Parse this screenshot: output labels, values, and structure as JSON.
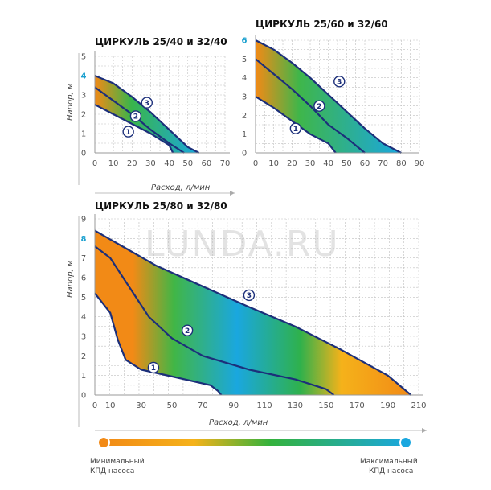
{
  "chart_data": [
    {
      "type": "line",
      "title": "ЦИРКУЛЬ 25/40 и 32/40",
      "xlabel": "Расход, л/мин",
      "ylabel": "Напор, м",
      "xlim": [
        0,
        70
      ],
      "ylim": [
        0,
        5
      ],
      "xticks": [
        "0",
        "10",
        "20",
        "30",
        "40",
        "50",
        "60",
        "70"
      ],
      "yticks": [
        "0",
        "1",
        "2",
        "3",
        "4",
        "5"
      ],
      "highlight_ytick": "4",
      "series": [
        {
          "label": "1",
          "points": [
            [
              0,
              2.5
            ],
            [
              10,
              2.0
            ],
            [
              20,
              1.5
            ],
            [
              30,
              1.0
            ],
            [
              40,
              0.4
            ],
            [
              42,
              0.0
            ]
          ]
        },
        {
          "label": "2",
          "points": [
            [
              0,
              3.4
            ],
            [
              10,
              2.7
            ],
            [
              20,
              2.0
            ],
            [
              30,
              1.2
            ],
            [
              40,
              0.5
            ],
            [
              48,
              0.0
            ]
          ]
        },
        {
          "label": "3",
          "points": [
            [
              0,
              4.0
            ],
            [
              10,
              3.6
            ],
            [
              20,
              2.9
            ],
            [
              30,
              2.1
            ],
            [
              40,
              1.2
            ],
            [
              50,
              0.3
            ],
            [
              56,
              0.0
            ]
          ]
        }
      ],
      "curve_label_at": [
        [
          18,
          1.1
        ],
        [
          22,
          1.9
        ],
        [
          28,
          2.6
        ]
      ],
      "area_max": [
        [
          0,
          4.0
        ],
        [
          10,
          3.6
        ],
        [
          20,
          2.9
        ],
        [
          30,
          2.1
        ],
        [
          40,
          1.2
        ],
        [
          50,
          0.3
        ],
        [
          56,
          0.0
        ]
      ],
      "area_min": [
        [
          0,
          2.5
        ],
        [
          10,
          2.0
        ],
        [
          20,
          1.5
        ],
        [
          30,
          1.0
        ],
        [
          40,
          0.4
        ],
        [
          42,
          0.0
        ]
      ]
    },
    {
      "type": "line",
      "title": "ЦИРКУЛЬ 25/60 и 32/60",
      "xlabel": "",
      "ylabel": "",
      "xlim": [
        0,
        90
      ],
      "ylim": [
        0,
        6
      ],
      "xticks": [
        "0",
        "10",
        "20",
        "30",
        "40",
        "50",
        "60",
        "70",
        "80",
        "90"
      ],
      "yticks": [
        "0",
        "1",
        "2",
        "3",
        "4",
        "5",
        "6"
      ],
      "highlight_ytick": "6",
      "series": [
        {
          "label": "1",
          "points": [
            [
              0,
              3.0
            ],
            [
              10,
              2.4
            ],
            [
              20,
              1.7
            ],
            [
              30,
              1.0
            ],
            [
              40,
              0.5
            ],
            [
              44,
              0.0
            ]
          ]
        },
        {
          "label": "2",
          "points": [
            [
              0,
              5.0
            ],
            [
              10,
              4.2
            ],
            [
              20,
              3.4
            ],
            [
              30,
              2.5
            ],
            [
              40,
              1.5
            ],
            [
              50,
              0.8
            ],
            [
              60,
              0.0
            ]
          ]
        },
        {
          "label": "3",
          "points": [
            [
              0,
              6.0
            ],
            [
              10,
              5.5
            ],
            [
              20,
              4.8
            ],
            [
              30,
              4.0
            ],
            [
              40,
              3.1
            ],
            [
              50,
              2.2
            ],
            [
              60,
              1.3
            ],
            [
              70,
              0.5
            ],
            [
              80,
              0.0
            ]
          ]
        }
      ],
      "curve_label_at": [
        [
          22,
          1.3
        ],
        [
          35,
          2.5
        ],
        [
          46,
          3.8
        ]
      ],
      "area_max": [
        [
          0,
          6.0
        ],
        [
          10,
          5.5
        ],
        [
          20,
          4.8
        ],
        [
          30,
          4.0
        ],
        [
          40,
          3.1
        ],
        [
          50,
          2.2
        ],
        [
          60,
          1.3
        ],
        [
          70,
          0.5
        ],
        [
          80,
          0.0
        ]
      ],
      "area_min": [
        [
          0,
          3.0
        ],
        [
          10,
          2.4
        ],
        [
          20,
          1.7
        ],
        [
          30,
          1.0
        ],
        [
          40,
          0.5
        ],
        [
          44,
          0.0
        ]
      ]
    },
    {
      "type": "line",
      "title": "ЦИРКУЛЬ 25/80 и 32/80",
      "xlabel": "Расход, л/мин",
      "ylabel": "Напор, м",
      "xlim": [
        0,
        210
      ],
      "ylim": [
        0,
        9
      ],
      "xticks": [
        "0",
        "10",
        "30",
        "50",
        "70",
        "90",
        "110",
        "130",
        "150",
        "170",
        "190",
        "210"
      ],
      "xtick_values": [
        0,
        10,
        30,
        50,
        70,
        90,
        110,
        130,
        150,
        170,
        190,
        210
      ],
      "yticks": [
        "0",
        "1",
        "2",
        "3",
        "4",
        "5",
        "6",
        "7",
        "8",
        "9"
      ],
      "highlight_ytick": "8",
      "series": [
        {
          "label": "1",
          "points": [
            [
              0,
              5.2
            ],
            [
              10,
              4.2
            ],
            [
              15,
              2.8
            ],
            [
              20,
              1.8
            ],
            [
              30,
              1.3
            ],
            [
              50,
              0.95
            ],
            [
              75,
              0.5
            ],
            [
              80,
              0.2
            ],
            [
              82,
              0.0
            ]
          ]
        },
        {
          "label": "2",
          "points": [
            [
              0,
              7.6
            ],
            [
              10,
              7.0
            ],
            [
              20,
              5.8
            ],
            [
              35,
              4.0
            ],
            [
              50,
              2.9
            ],
            [
              70,
              2.0
            ],
            [
              100,
              1.3
            ],
            [
              130,
              0.8
            ],
            [
              150,
              0.3
            ],
            [
              155,
              0.0
            ]
          ]
        },
        {
          "label": "3",
          "points": [
            [
              0,
              8.4
            ],
            [
              20,
              7.5
            ],
            [
              40,
              6.6
            ],
            [
              60,
              5.9
            ],
            [
              80,
              5.2
            ],
            [
              100,
              4.5
            ],
            [
              130,
              3.5
            ],
            [
              160,
              2.3
            ],
            [
              190,
              1.0
            ],
            [
              205,
              0.0
            ]
          ]
        }
      ],
      "curve_label_at": [
        [
          38,
          1.4
        ],
        [
          60,
          3.3
        ],
        [
          100,
          5.1
        ]
      ],
      "area_max": [
        [
          0,
          8.4
        ],
        [
          20,
          7.5
        ],
        [
          40,
          6.6
        ],
        [
          60,
          5.9
        ],
        [
          80,
          5.2
        ],
        [
          100,
          4.5
        ],
        [
          130,
          3.5
        ],
        [
          160,
          2.3
        ],
        [
          190,
          1.0
        ],
        [
          205,
          0.0
        ]
      ],
      "area_min": [
        [
          0,
          5.2
        ],
        [
          10,
          4.2
        ],
        [
          15,
          2.8
        ],
        [
          20,
          1.8
        ],
        [
          30,
          1.3
        ],
        [
          50,
          0.95
        ],
        [
          75,
          0.5
        ],
        [
          80,
          0.2
        ],
        [
          82,
          0.0
        ]
      ]
    }
  ],
  "legend": {
    "min_label_1": "Минимальный",
    "min_label_2": "КПД насоса",
    "max_label_1": "Максимальный",
    "max_label_2": "КПД насоса",
    "colors": [
      "#f28a16",
      "#f5b21a",
      "#34b23c",
      "#1aa7df"
    ]
  },
  "watermark": "LUNDA.RU",
  "colors": {
    "curve": "#1c2f7a",
    "grid": "#bfbfbf",
    "axis_label": "#555555",
    "highlight": "#1aa0cf"
  }
}
